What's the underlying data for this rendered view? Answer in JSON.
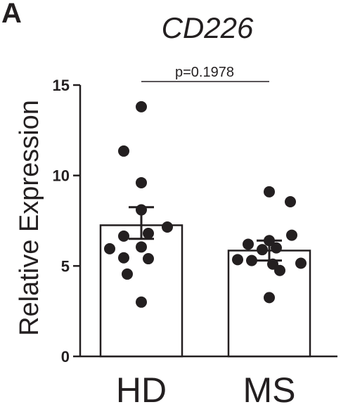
{
  "panel_label": "A",
  "chart_data": {
    "type": "bar",
    "title": "CD226",
    "ylabel": "Relative Expression",
    "xlabel": "",
    "categories": [
      "HD",
      "MS"
    ],
    "ylim": [
      0,
      15
    ],
    "yticks": [
      0,
      5,
      10,
      15
    ],
    "bars": [
      {
        "category": "HD",
        "mean": 7.25,
        "sem_upper": 8.25,
        "sem_lower": 6.5,
        "points": [
          13.8,
          11.35,
          9.6,
          8.1,
          7.15,
          6.8,
          6.65,
          6.05,
          5.95,
          5.45,
          5.4,
          4.55,
          3.0
        ]
      },
      {
        "category": "MS",
        "mean": 5.85,
        "sem_upper": 6.4,
        "sem_lower": 5.3,
        "points": [
          9.1,
          8.55,
          6.7,
          6.4,
          6.2,
          6.0,
          5.9,
          5.35,
          5.3,
          5.15,
          5.1,
          4.75,
          3.25
        ]
      }
    ],
    "annotation": "p=0.1978",
    "grid": false,
    "legend": "none"
  }
}
